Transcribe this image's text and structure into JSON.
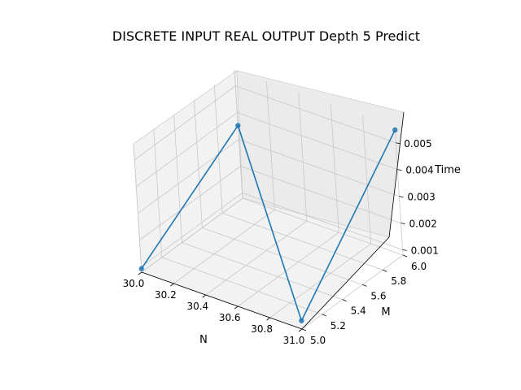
{
  "chart_data": {
    "type": "line",
    "projection": "3d",
    "title": "DISCRETE INPUT REAL OUTPUT Depth 5 Predict",
    "xlabel": "N",
    "ylabel": "M",
    "zlabel": "Time",
    "x_ticks": [
      "30.0",
      "30.2",
      "30.4",
      "30.6",
      "30.8",
      "31.0"
    ],
    "y_ticks": [
      "5.0",
      "5.2",
      "5.4",
      "5.6",
      "5.8",
      "6.0"
    ],
    "z_ticks": [
      "0.001",
      "0.002",
      "0.003",
      "0.004",
      "0.005"
    ],
    "xlim": [
      30.0,
      31.0
    ],
    "ylim": [
      5.0,
      6.0
    ],
    "zlim": [
      0.0008,
      0.0056
    ],
    "grid": true,
    "series": [
      {
        "color": "#1f77b4",
        "markers": true,
        "points": [
          {
            "x": 30,
            "y": 5,
            "z": 0.00093
          },
          {
            "x": 30,
            "y": 6,
            "z": 0.00352
          },
          {
            "x": 31,
            "y": 5,
            "z": 0.00111
          },
          {
            "x": 31,
            "y": 6,
            "z": 0.00548
          }
        ]
      }
    ]
  }
}
